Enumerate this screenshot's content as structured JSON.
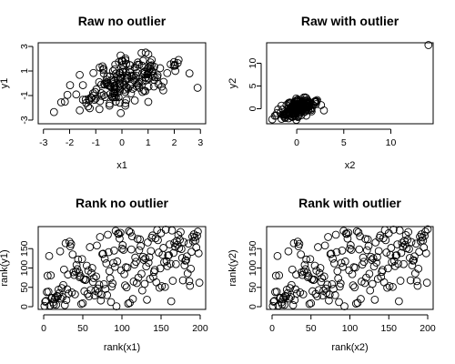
{
  "chart_data": [
    {
      "type": "scatter",
      "title": "Raw no outlier",
      "xlabel": "x1",
      "ylabel": "y1",
      "xlim": [
        -3.2,
        3.2
      ],
      "ylim": [
        -3.3,
        3.3
      ],
      "xticks": [
        -3,
        -2,
        -1,
        0,
        1,
        2,
        3
      ],
      "yticks": [
        -3,
        -1,
        1,
        3
      ],
      "points": "raw",
      "outlier": null
    },
    {
      "type": "scatter",
      "title": "Raw with outlier",
      "xlabel": "x2",
      "ylabel": "y2",
      "xlim": [
        -3.2,
        14.5
      ],
      "ylim": [
        -3.3,
        14.5
      ],
      "xticks": [
        0,
        5,
        10
      ],
      "yticks": [
        0,
        5,
        10
      ],
      "points": "raw",
      "outlier": [
        14,
        14
      ]
    },
    {
      "type": "scatter",
      "title": "Rank no outlier",
      "xlabel": "rank(x1)",
      "ylabel": "rank(y1)",
      "xlim": [
        -7,
        207
      ],
      "ylim": [
        -7,
        207
      ],
      "xticks": [
        0,
        50,
        100,
        150,
        200
      ],
      "yticks": [
        0,
        50,
        100,
        150
      ],
      "points": "rank",
      "outlier": null
    },
    {
      "type": "scatter",
      "title": "Rank with outlier",
      "xlabel": "rank(x2)",
      "ylabel": "rank(y2)",
      "xlim": [
        -7,
        207
      ],
      "ylim": [
        -7,
        207
      ],
      "xticks": [
        0,
        50,
        100,
        150,
        200
      ],
      "yticks": [
        0,
        50,
        100,
        150
      ],
      "points": "rank",
      "outlier": [
        200,
        200
      ]
    }
  ]
}
